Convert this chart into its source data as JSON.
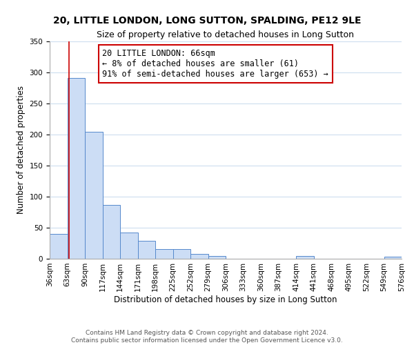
{
  "title": "20, LITTLE LONDON, LONG SUTTON, SPALDING, PE12 9LE",
  "subtitle": "Size of property relative to detached houses in Long Sutton",
  "xlabel": "Distribution of detached houses by size in Long Sutton",
  "ylabel": "Number of detached properties",
  "bin_edges": [
    36,
    63,
    90,
    117,
    144,
    171,
    198,
    225,
    252,
    279,
    306,
    333,
    360,
    387,
    414,
    441,
    468,
    495,
    522,
    549,
    576
  ],
  "bar_heights": [
    40,
    291,
    204,
    87,
    42,
    29,
    16,
    16,
    8,
    5,
    0,
    0,
    0,
    0,
    4,
    0,
    0,
    0,
    0,
    3
  ],
  "bar_color": "#ccddf5",
  "bar_edge_color": "#5588cc",
  "property_size": 66,
  "red_line_color": "#cc0000",
  "annotation_text": "20 LITTLE LONDON: 66sqm\n← 8% of detached houses are smaller (61)\n91% of semi-detached houses are larger (653) →",
  "annotation_box_color": "#ffffff",
  "annotation_box_edge_color": "#cc0000",
  "ylim": [
    0,
    350
  ],
  "yticks": [
    0,
    50,
    100,
    150,
    200,
    250,
    300,
    350
  ],
  "footer_text": "Contains HM Land Registry data © Crown copyright and database right 2024.\nContains public sector information licensed under the Open Government Licence v3.0.",
  "bg_color": "#ffffff",
  "title_fontsize": 10,
  "subtitle_fontsize": 9,
  "axis_label_fontsize": 8.5,
  "tick_fontsize": 7.5,
  "annotation_fontsize": 8.5,
  "footer_fontsize": 6.5
}
